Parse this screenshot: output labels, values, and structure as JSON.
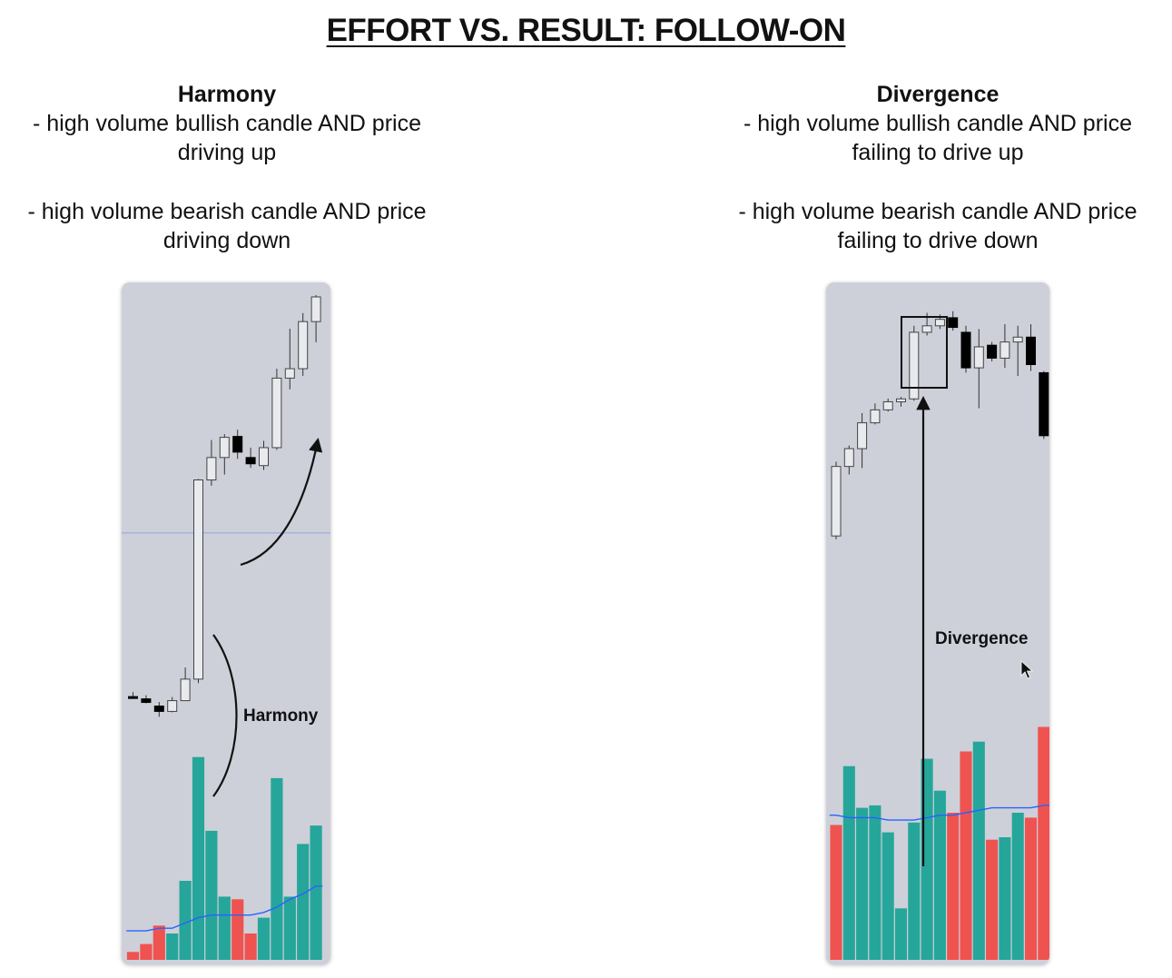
{
  "title": "EFFORT VS. RESULT: FOLLOW-ON",
  "columns": [
    {
      "heading": "Harmony",
      "points": [
        "- high volume bullish candle AND price driving up",
        "- high volume bearish candle AND price driving down"
      ]
    },
    {
      "heading": "Divergence",
      "points": [
        "- high volume bullish candle AND price failing to drive up",
        "- high volume bearish candle AND price failing to drive down"
      ]
    }
  ],
  "colors": {
    "panel_bg": "#cdd0d8",
    "bull_candle_body": "#e8eaee",
    "bear_candle_body": "#000000",
    "bull_volume": "#26a69a",
    "bear_volume": "#ef5350",
    "volume_ma": "#2962ff",
    "annotation": "#111111"
  },
  "chart_data": [
    {
      "type": "candlestick",
      "title": "",
      "annotation": "Harmony",
      "price_ylim": [
        0,
        100
      ],
      "volume_ylim": [
        0,
        100
      ],
      "reference_line_price": 47,
      "candles": [
        {
          "o": 10.5,
          "h": 11.5,
          "l": 10,
          "c": 10.4,
          "dir": "bear"
        },
        {
          "o": 10.0,
          "h": 10.8,
          "l": 9.0,
          "c": 9.2,
          "dir": "bear"
        },
        {
          "o": 8.4,
          "h": 9.3,
          "l": 6.0,
          "c": 7.2,
          "dir": "bear"
        },
        {
          "o": 7.2,
          "h": 10.4,
          "l": 7.0,
          "c": 9.6,
          "dir": "bull"
        },
        {
          "o": 9.6,
          "h": 17.0,
          "l": 9.6,
          "c": 14.4,
          "dir": "bull"
        },
        {
          "o": 14.4,
          "h": 59.0,
          "l": 13.5,
          "c": 58.8,
          "dir": "bull"
        },
        {
          "o": 58.8,
          "h": 67.7,
          "l": 57.5,
          "c": 63.8,
          "dir": "bull"
        },
        {
          "o": 63.8,
          "h": 69.0,
          "l": 60.0,
          "c": 68.3,
          "dir": "bull"
        },
        {
          "o": 68.5,
          "h": 70.0,
          "l": 63.5,
          "c": 65.0,
          "dir": "bear"
        },
        {
          "o": 63.8,
          "h": 66.0,
          "l": 61.5,
          "c": 62.4,
          "dir": "bear"
        },
        {
          "o": 62.0,
          "h": 67.5,
          "l": 61.0,
          "c": 66.0,
          "dir": "bull"
        },
        {
          "o": 66.0,
          "h": 83.6,
          "l": 65.5,
          "c": 81.5,
          "dir": "bull"
        },
        {
          "o": 81.5,
          "h": 92.5,
          "l": 79.0,
          "c": 83.6,
          "dir": "bull"
        },
        {
          "o": 83.6,
          "h": 96.0,
          "l": 82.0,
          "c": 94.1,
          "dir": "bull"
        },
        {
          "o": 94.1,
          "h": 100.0,
          "l": 89.5,
          "c": 99.6,
          "dir": "bull"
        }
      ],
      "volume": [
        {
          "v": 3,
          "dir": "bear"
        },
        {
          "v": 6,
          "dir": "bear"
        },
        {
          "v": 13,
          "dir": "bear"
        },
        {
          "v": 10,
          "dir": "bull"
        },
        {
          "v": 30,
          "dir": "bull"
        },
        {
          "v": 77,
          "dir": "bull"
        },
        {
          "v": 49,
          "dir": "bull"
        },
        {
          "v": 24,
          "dir": "bull"
        },
        {
          "v": 23,
          "dir": "bear"
        },
        {
          "v": 10,
          "dir": "bear"
        },
        {
          "v": 16,
          "dir": "bull"
        },
        {
          "v": 69,
          "dir": "bull"
        },
        {
          "v": 24,
          "dir": "bull"
        },
        {
          "v": 44,
          "dir": "bull"
        },
        {
          "v": 51,
          "dir": "bull"
        }
      ],
      "volume_ma": [
        11,
        11,
        12,
        12,
        14,
        16,
        17,
        17,
        17,
        17,
        18,
        20,
        23,
        25,
        28
      ]
    },
    {
      "type": "candlestick",
      "title": "",
      "annotation": "Divergence",
      "price_ylim": [
        0,
        100
      ],
      "volume_ylim": [
        0,
        100
      ],
      "candles": [
        {
          "o": 30,
          "h": 53,
          "l": 29,
          "c": 51.5,
          "dir": "bull"
        },
        {
          "o": 51.5,
          "h": 58,
          "l": 49,
          "c": 57,
          "dir": "bull"
        },
        {
          "o": 57,
          "h": 68,
          "l": 51,
          "c": 65,
          "dir": "bull"
        },
        {
          "o": 65,
          "h": 71,
          "l": 64.5,
          "c": 69,
          "dir": "bull"
        },
        {
          "o": 69,
          "h": 72.5,
          "l": 68.5,
          "c": 71.5,
          "dir": "bull"
        },
        {
          "o": 71.5,
          "h": 73,
          "l": 70,
          "c": 72.4,
          "dir": "bull"
        },
        {
          "o": 72.4,
          "h": 95,
          "l": 71.8,
          "c": 93,
          "dir": "bull"
        },
        {
          "o": 93,
          "h": 99,
          "l": 92,
          "c": 95,
          "dir": "bull"
        },
        {
          "o": 95,
          "h": 98.5,
          "l": 94,
          "c": 97,
          "dir": "bull"
        },
        {
          "o": 97.5,
          "h": 99.5,
          "l": 93.5,
          "c": 94.5,
          "dir": "bear"
        },
        {
          "o": 93,
          "h": 95,
          "l": 80.5,
          "c": 82,
          "dir": "bear"
        },
        {
          "o": 82,
          "h": 94,
          "l": 69.5,
          "c": 88.5,
          "dir": "bull"
        },
        {
          "o": 89,
          "h": 90,
          "l": 84,
          "c": 85,
          "dir": "bear"
        },
        {
          "o": 85,
          "h": 95.5,
          "l": 82,
          "c": 90,
          "dir": "bull"
        },
        {
          "o": 90,
          "h": 95,
          "l": 79.5,
          "c": 91.5,
          "dir": "bull"
        },
        {
          "o": 91.5,
          "h": 95.5,
          "l": 81,
          "c": 83,
          "dir": "bear"
        },
        {
          "o": 80.5,
          "h": 81,
          "l": 60,
          "c": 61,
          "dir": "bear"
        },
        {
          "o": 60,
          "h": 62,
          "l": 59.5,
          "c": 61.5,
          "dir": "bull"
        }
      ],
      "volume": [
        {
          "v": 55,
          "dir": "bear"
        },
        {
          "v": 79,
          "dir": "bull"
        },
        {
          "v": 62,
          "dir": "bull"
        },
        {
          "v": 63,
          "dir": "bull"
        },
        {
          "v": 52,
          "dir": "bull"
        },
        {
          "v": 21,
          "dir": "bull"
        },
        {
          "v": 56,
          "dir": "bull"
        },
        {
          "v": 82,
          "dir": "bull"
        },
        {
          "v": 69,
          "dir": "bull"
        },
        {
          "v": 60,
          "dir": "bear"
        },
        {
          "v": 85,
          "dir": "bear"
        },
        {
          "v": 89,
          "dir": "bull"
        },
        {
          "v": 49,
          "dir": "bear"
        },
        {
          "v": 50,
          "dir": "bull"
        },
        {
          "v": 60,
          "dir": "bull"
        },
        {
          "v": 58,
          "dir": "bear"
        },
        {
          "v": 95,
          "dir": "bear"
        },
        {
          "v": 47,
          "dir": "bull"
        }
      ],
      "volume_ma": [
        59,
        58,
        58,
        58,
        57,
        57,
        57,
        58,
        59,
        59,
        60,
        61,
        62,
        62,
        62,
        62,
        63,
        63
      ]
    }
  ]
}
